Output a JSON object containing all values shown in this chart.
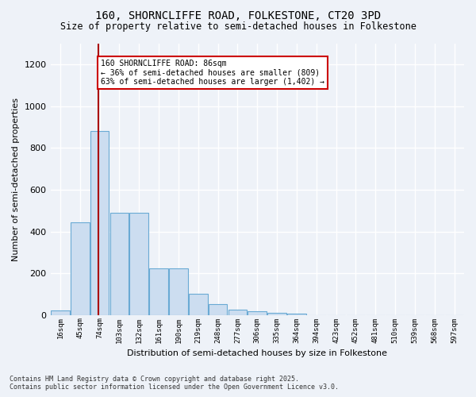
{
  "title_line1": "160, SHORNCLIFFE ROAD, FOLKESTONE, CT20 3PD",
  "title_line2": "Size of property relative to semi-detached houses in Folkestone",
  "xlabel": "Distribution of semi-detached houses by size in Folkestone",
  "ylabel": "Number of semi-detached properties",
  "categories": [
    "16sqm",
    "45sqm",
    "74sqm",
    "103sqm",
    "132sqm",
    "161sqm",
    "190sqm",
    "219sqm",
    "248sqm",
    "277sqm",
    "306sqm",
    "335sqm",
    "364sqm",
    "394sqm",
    "423sqm",
    "452sqm",
    "481sqm",
    "510sqm",
    "539sqm",
    "568sqm",
    "597sqm"
  ],
  "values": [
    22,
    443,
    880,
    490,
    490,
    225,
    225,
    103,
    50,
    25,
    18,
    10,
    5,
    0,
    0,
    0,
    0,
    0,
    0,
    0,
    0
  ],
  "bar_color": "#ccddf0",
  "bar_edge_color": "#6aaad4",
  "highlight_line_color": "#aa0000",
  "annotation_title": "160 SHORNCLIFFE ROAD: 86sqm",
  "annotation_line2": "← 36% of semi-detached houses are smaller (809)",
  "annotation_line3": "63% of semi-detached houses are larger (1,402) →",
  "annotation_box_color": "#cc0000",
  "ylim": [
    0,
    1300
  ],
  "yticks": [
    0,
    200,
    400,
    600,
    800,
    1000,
    1200
  ],
  "background_color": "#eef2f8",
  "grid_color": "#ffffff",
  "footer_line1": "Contains HM Land Registry data © Crown copyright and database right 2025.",
  "footer_line2": "Contains public sector information licensed under the Open Government Licence v3.0."
}
